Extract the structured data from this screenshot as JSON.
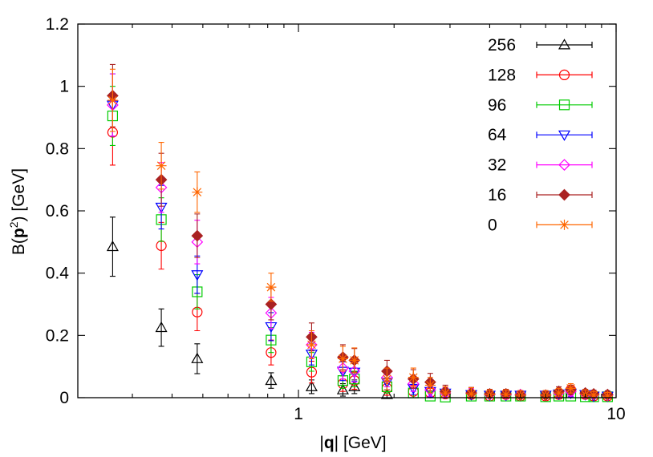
{
  "chart_data": {
    "type": "scatter",
    "xlabel": "|q| [GeV]",
    "ylabel": "B(p^2) [GeV]",
    "xlabel_parts": {
      "pre": "|",
      "bold": "q",
      "post": "| [GeV]"
    },
    "ylabel_parts": {
      "pre": "B(",
      "bold": "p",
      "sup": "2",
      "post": ") [GeV]"
    },
    "xscale": "log",
    "xlim": [
      0.202,
      10
    ],
    "ylim": [
      0,
      1.2
    ],
    "x_ticks": [
      {
        "value": 1,
        "label": "1"
      },
      {
        "value": 10,
        "label": "10"
      }
    ],
    "y_ticks": [
      {
        "value": 0,
        "label": "0"
      },
      {
        "value": 0.2,
        "label": "0.2"
      },
      {
        "value": 0.4,
        "label": "0.4"
      },
      {
        "value": 0.6,
        "label": "0.6"
      },
      {
        "value": 0.8,
        "label": "0.8"
      },
      {
        "value": 1,
        "label": "1"
      },
      {
        "value": 1.2,
        "label": "1.2"
      }
    ],
    "grid": false,
    "legend_position": "top-right",
    "series": [
      {
        "name": "256",
        "color": "#000000",
        "marker": "triangle-up",
        "x": [
          0.26,
          0.37,
          0.48,
          0.82,
          1.1,
          1.38,
          1.5,
          1.9
        ],
        "y": [
          0.485,
          0.225,
          0.125,
          0.055,
          0.035,
          0.025,
          0.035,
          0.01
        ],
        "err": [
          0.095,
          0.06,
          0.048,
          0.025,
          0.022,
          0.02,
          0.022,
          0.015
        ]
      },
      {
        "name": "128",
        "color": "#ff0000",
        "marker": "circle",
        "x": [
          0.26,
          0.37,
          0.48,
          0.82,
          1.1,
          1.38,
          1.5,
          1.9,
          2.3,
          2.6,
          2.9,
          3.5,
          4.0,
          4.5,
          5.0,
          6.0,
          6.6,
          7.2,
          8.0,
          8.5,
          9.4
        ],
        "y": [
          0.852,
          0.488,
          0.275,
          0.145,
          0.082,
          0.045,
          0.055,
          0.03,
          0.02,
          0.015,
          0.012,
          0.01,
          0.005,
          0.01,
          0.005,
          0.005,
          0.01,
          0.025,
          0.01,
          0.005,
          0.005
        ],
        "err": [
          0.105,
          0.075,
          0.06,
          0.04,
          0.035,
          0.025,
          0.028,
          0.022,
          0.02,
          0.02,
          0.015,
          0.015,
          0.012,
          0.012,
          0.012,
          0.012,
          0.012,
          0.015,
          0.012,
          0.012,
          0.012
        ]
      },
      {
        "name": "96",
        "color": "#00cc00",
        "marker": "square",
        "x": [
          0.26,
          0.37,
          0.48,
          0.82,
          1.1,
          1.38,
          1.5,
          1.9,
          2.3,
          2.6,
          2.9,
          3.5,
          4.0,
          4.5,
          5.0,
          6.0,
          6.6,
          7.2,
          8.0,
          8.5,
          9.4
        ],
        "y": [
          0.905,
          0.572,
          0.34,
          0.185,
          0.115,
          0.055,
          0.06,
          0.035,
          0.015,
          0.005,
          0.002,
          0.005,
          0.005,
          0.005,
          0.005,
          0.003,
          0.005,
          0.005,
          0.003,
          0.003,
          0.003
        ],
        "err": [
          0.095,
          0.07,
          0.055,
          0.04,
          0.03,
          0.025,
          0.025,
          0.02,
          0.015,
          0.012,
          0.012,
          0.012,
          0.012,
          0.012,
          0.012,
          0.012,
          0.012,
          0.012,
          0.012,
          0.012,
          0.012
        ]
      },
      {
        "name": "64",
        "color": "#0000ff",
        "marker": "triangle-down",
        "x": [
          0.26,
          0.37,
          0.48,
          0.82,
          1.1,
          1.38,
          1.5,
          1.9,
          2.3,
          2.6,
          2.9,
          3.5,
          4.0,
          4.5,
          5.0,
          6.0,
          6.6,
          7.2,
          8.0,
          8.5,
          9.4
        ],
        "y": [
          0.94,
          0.612,
          0.395,
          0.228,
          0.14,
          0.085,
          0.082,
          0.05,
          0.03,
          0.02,
          0.015,
          0.01,
          0.008,
          0.008,
          0.008,
          0.008,
          0.012,
          0.015,
          0.01,
          0.005,
          0.005
        ],
        "err": [
          0.1,
          0.07,
          0.06,
          0.045,
          0.035,
          0.03,
          0.03,
          0.025,
          0.02,
          0.018,
          0.015,
          0.015,
          0.012,
          0.012,
          0.012,
          0.012,
          0.012,
          0.012,
          0.012,
          0.012,
          0.012
        ]
      },
      {
        "name": "32",
        "color": "#ff00ff",
        "marker": "diamond",
        "x": [
          0.26,
          0.37,
          0.48,
          0.82,
          1.1,
          1.38,
          1.5,
          1.9,
          2.3,
          2.6,
          2.9,
          3.5,
          4.0,
          4.5,
          5.0,
          6.0,
          6.6,
          7.2,
          8.0,
          8.5,
          9.4
        ],
        "y": [
          0.94,
          0.675,
          0.5,
          0.272,
          0.17,
          0.095,
          0.085,
          0.065,
          0.045,
          0.025,
          0.015,
          0.015,
          0.01,
          0.01,
          0.01,
          0.008,
          0.015,
          0.02,
          0.012,
          0.01,
          0.008
        ],
        "err": [
          0.1,
          0.08,
          0.07,
          0.05,
          0.04,
          0.035,
          0.035,
          0.03,
          0.025,
          0.02,
          0.018,
          0.015,
          0.015,
          0.015,
          0.012,
          0.012,
          0.012,
          0.015,
          0.012,
          0.012,
          0.012
        ]
      },
      {
        "name": "16",
        "color": "#aa2222",
        "marker": "diamond-filled",
        "x": [
          0.26,
          0.37,
          0.48,
          0.82,
          1.1,
          1.38,
          1.5,
          1.9,
          2.3,
          2.6,
          2.9,
          3.5,
          4.0,
          4.5,
          5.0,
          6.0,
          6.6,
          7.2,
          8.0,
          8.5,
          9.4
        ],
        "y": [
          0.97,
          0.7,
          0.52,
          0.3,
          0.195,
          0.13,
          0.12,
          0.085,
          0.06,
          0.05,
          0.02,
          0.015,
          0.012,
          0.012,
          0.008,
          0.008,
          0.02,
          0.025,
          0.015,
          0.012,
          0.01
        ],
        "err": [
          0.1,
          0.085,
          0.07,
          0.05,
          0.045,
          0.04,
          0.038,
          0.035,
          0.03,
          0.028,
          0.02,
          0.018,
          0.015,
          0.015,
          0.012,
          0.012,
          0.015,
          0.015,
          0.012,
          0.012,
          0.012
        ]
      },
      {
        "name": "0",
        "color": "#ff6600",
        "marker": "star",
        "x": [
          0.26,
          0.37,
          0.48,
          0.82,
          1.1,
          1.38,
          1.5,
          1.9,
          2.3,
          2.6,
          2.9,
          3.5,
          4.0,
          4.5,
          5.0,
          6.0,
          6.6,
          7.2,
          8.0,
          8.5,
          9.4
        ],
        "y": [
          0.955,
          0.745,
          0.66,
          0.355,
          0.17,
          0.125,
          0.12,
          0.06,
          0.065,
          0.04,
          0.015,
          0.012,
          0.01,
          0.01,
          0.008,
          0.008,
          0.015,
          0.03,
          0.01,
          0.008,
          0.005
        ],
        "err": [
          0.1,
          0.075,
          0.065,
          0.045,
          0.045,
          0.04,
          0.04,
          0.035,
          0.03,
          0.025,
          0.02,
          0.02,
          0.015,
          0.015,
          0.015,
          0.015,
          0.015,
          0.015,
          0.015,
          0.012,
          0.012
        ]
      }
    ]
  }
}
